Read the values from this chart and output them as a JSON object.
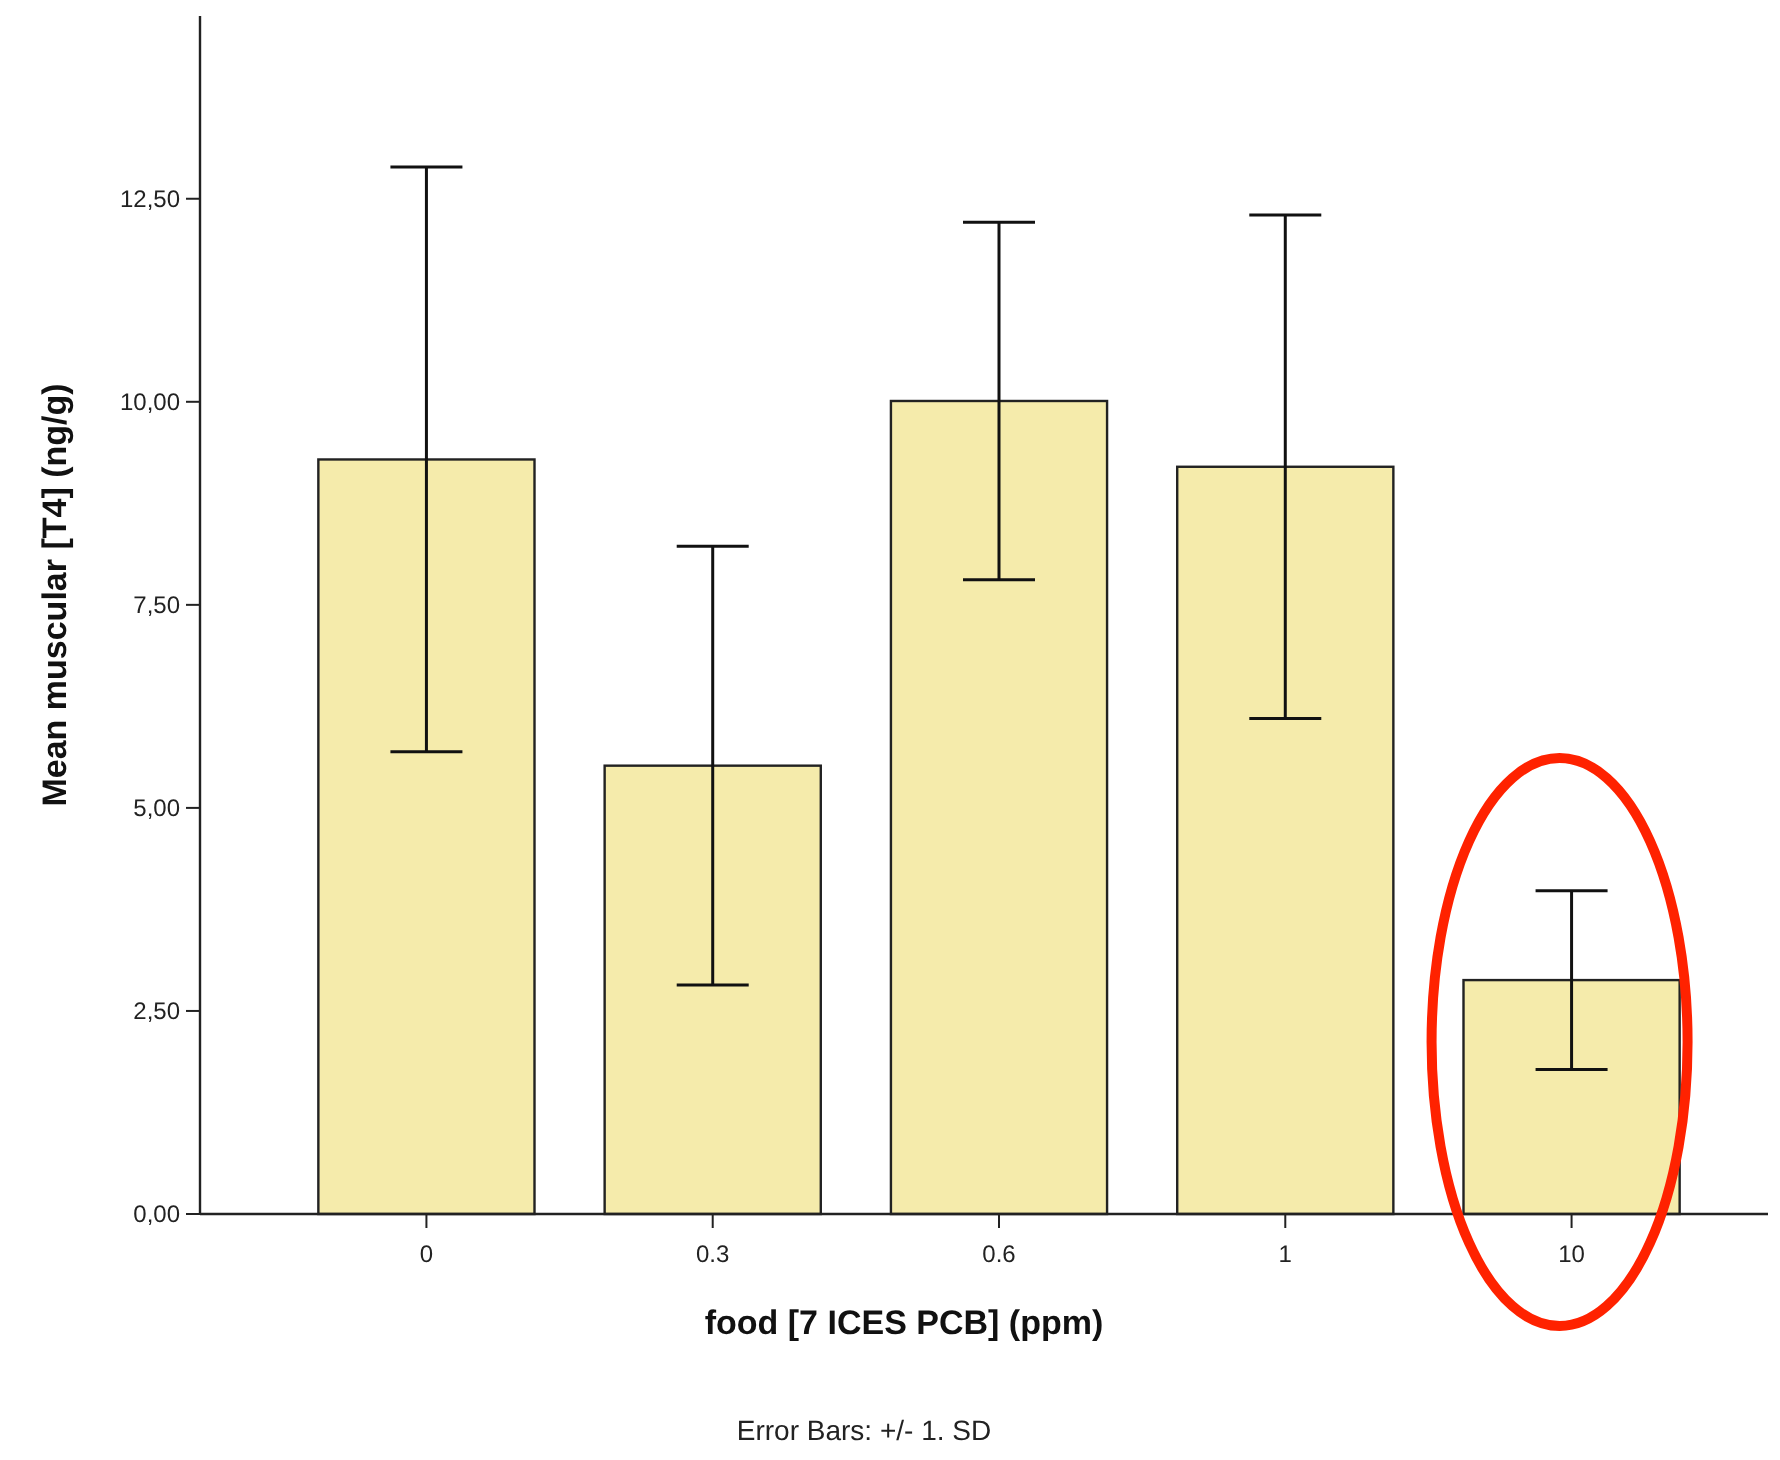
{
  "chart_data": {
    "type": "bar",
    "xlabel": "food [7 ICES PCB] (ppm)",
    "ylabel": "Mean muscular [T4] (ng/g)",
    "categories": [
      "0",
      "0.3",
      "0.6",
      "1",
      "10"
    ],
    "values": [
      9.29,
      5.52,
      10.01,
      9.2,
      2.88
    ],
    "errors": [
      3.6,
      2.7,
      2.2,
      3.1,
      1.1
    ],
    "color": "#f5ebab",
    "ylim": [
      0,
      14.75
    ],
    "yticks": [
      {
        "value": 0,
        "label": "0,00"
      },
      {
        "value": 2.5,
        "label": "2,50"
      },
      {
        "value": 5,
        "label": "5,00"
      },
      {
        "value": 7.5,
        "label": "7,50"
      },
      {
        "value": 10,
        "label": "10,00"
      },
      {
        "value": 12.5,
        "label": "12,50"
      }
    ],
    "grid": false,
    "annotations": [
      "Error Bars: +/- 1. SD"
    ]
  }
}
